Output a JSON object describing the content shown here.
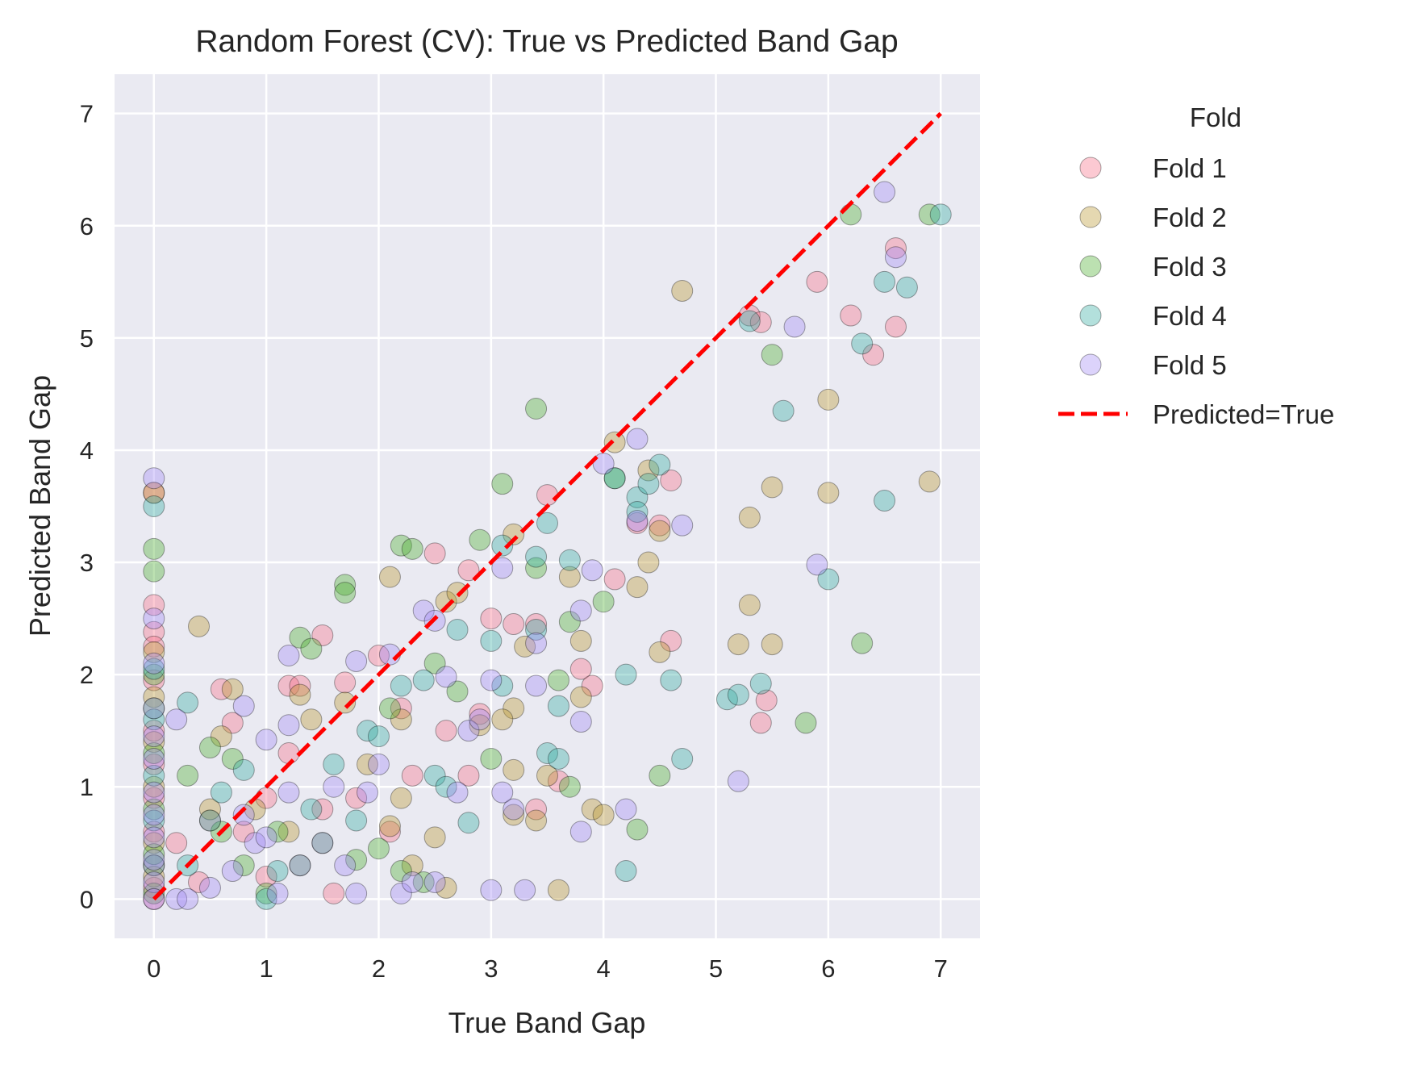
{
  "chart_data": {
    "type": "scatter",
    "title": "Random Forest (CV): True vs Predicted Band Gap",
    "xlabel": "True Band Gap",
    "ylabel": "Predicted Band Gap",
    "xlim": [
      -0.35,
      7.35
    ],
    "ylim": [
      -0.35,
      7.35
    ],
    "xticks": [
      "0",
      "1",
      "2",
      "3",
      "4",
      "5",
      "6",
      "7"
    ],
    "yticks": [
      "0",
      "1",
      "2",
      "3",
      "4",
      "5",
      "6",
      "7"
    ],
    "grid": true,
    "legend": {
      "title": "Fold",
      "placement": "outside-right",
      "entries": [
        "Fold 1",
        "Fold 2",
        "Fold 3",
        "Fold 4",
        "Fold 5",
        "Predicted=True"
      ]
    },
    "colors": {
      "Fold 1": "#f77189",
      "Fold 2": "#bb9832",
      "Fold 3": "#50b131",
      "Fold 4": "#36ada4",
      "Fold 5": "#a48cf4",
      "reference": "#ff0000",
      "background": "#eaeaf2"
    },
    "reference_line": {
      "name": "Predicted=True",
      "x": [
        0,
        7
      ],
      "y": [
        0,
        7
      ],
      "style": "dashed"
    },
    "series": [
      {
        "name": "Fold 1",
        "points": [
          [
            0,
            3.62
          ],
          [
            0,
            2.62
          ],
          [
            0,
            2.38
          ],
          [
            0,
            2.25
          ],
          [
            0,
            1.95
          ],
          [
            0,
            1.5
          ],
          [
            0,
            1.2
          ],
          [
            0,
            0.9
          ],
          [
            0,
            0.6
          ],
          [
            0,
            0.3
          ],
          [
            0,
            0.1
          ],
          [
            0,
            0
          ],
          [
            0.6,
            1.87
          ],
          [
            0.7,
            1.57
          ],
          [
            1.2,
            1.9
          ],
          [
            1.3,
            1.9
          ],
          [
            1.5,
            2.35
          ],
          [
            1.7,
            1.93
          ],
          [
            2,
            2.17
          ],
          [
            2.2,
            1.7
          ],
          [
            2.5,
            3.08
          ],
          [
            2.8,
            2.93
          ],
          [
            2.9,
            1.65
          ],
          [
            3,
            2.5
          ],
          [
            3.5,
            3.6
          ],
          [
            3.8,
            2.05
          ],
          [
            4.1,
            2.85
          ],
          [
            4.3,
            3.35
          ],
          [
            4.5,
            3.33
          ],
          [
            4.6,
            3.73
          ],
          [
            4.6,
            2.3
          ],
          [
            5.4,
            1.57
          ],
          [
            5.45,
            1.77
          ],
          [
            5.9,
            5.5
          ],
          [
            6.2,
            5.2
          ],
          [
            6.4,
            4.85
          ],
          [
            6.6,
            5.8
          ],
          [
            6.6,
            5.1
          ],
          [
            5.3,
            5.2
          ],
          [
            5.4,
            5.14
          ],
          [
            0.2,
            0.5
          ],
          [
            0.5,
            0.7
          ],
          [
            0.8,
            0.6
          ],
          [
            1,
            0.9
          ],
          [
            1.2,
            1.3
          ],
          [
            1.6,
            0.05
          ],
          [
            1.8,
            0.9
          ],
          [
            2.1,
            0.6
          ],
          [
            2.3,
            1.1
          ],
          [
            2.6,
            1.5
          ],
          [
            3.2,
            2.45
          ],
          [
            3.4,
            2.45
          ],
          [
            3.6,
            1.05
          ],
          [
            3.4,
            0.8
          ],
          [
            3.9,
            1.9
          ],
          [
            2.8,
            1.1
          ],
          [
            1.5,
            0.8
          ],
          [
            1,
            0.2
          ],
          [
            0.4,
            0.15
          ]
        ]
      },
      {
        "name": "Fold 2",
        "points": [
          [
            0,
            3.62
          ],
          [
            0,
            2.2
          ],
          [
            0,
            1.8
          ],
          [
            0,
            1.4
          ],
          [
            0,
            1.0
          ],
          [
            0,
            0.5
          ],
          [
            0,
            0.2
          ],
          [
            0.4,
            2.43
          ],
          [
            0.6,
            1.45
          ],
          [
            0.7,
            1.87
          ],
          [
            1.3,
            1.82
          ],
          [
            1.4,
            1.6
          ],
          [
            1.7,
            1.75
          ],
          [
            2.1,
            2.87
          ],
          [
            2.2,
            1.6
          ],
          [
            2.6,
            2.65
          ],
          [
            2.7,
            2.73
          ],
          [
            2.9,
            1.55
          ],
          [
            3.2,
            3.25
          ],
          [
            3.2,
            1.7
          ],
          [
            3.3,
            2.25
          ],
          [
            3.7,
            2.87
          ],
          [
            3.8,
            2.3
          ],
          [
            3.8,
            1.8
          ],
          [
            3.9,
            0.8
          ],
          [
            4,
            0.75
          ],
          [
            4.1,
            4.07
          ],
          [
            4.3,
            2.78
          ],
          [
            4.4,
            3
          ],
          [
            4.4,
            3.82
          ],
          [
            4.5,
            3.28
          ],
          [
            4.5,
            2.2
          ],
          [
            4.7,
            5.42
          ],
          [
            5.2,
            2.27
          ],
          [
            5.3,
            3.4
          ],
          [
            5.3,
            2.62
          ],
          [
            5.5,
            3.67
          ],
          [
            5.5,
            2.27
          ],
          [
            6,
            3.62
          ],
          [
            6,
            4.45
          ],
          [
            6.9,
            3.72
          ],
          [
            3.6,
            0.08
          ],
          [
            3.4,
            0.7
          ],
          [
            3.2,
            0.75
          ],
          [
            2.6,
            0.1
          ],
          [
            2.2,
            0.9
          ],
          [
            2.5,
            0.55
          ],
          [
            2.1,
            0.65
          ],
          [
            2.3,
            0.3
          ],
          [
            1.2,
            0.6
          ],
          [
            0.9,
            0.8
          ],
          [
            0.5,
            0.8
          ],
          [
            1.9,
            1.2
          ],
          [
            3.1,
            1.6
          ],
          [
            3.2,
            1.15
          ],
          [
            3.5,
            1.1
          ]
        ]
      },
      {
        "name": "Fold 3",
        "points": [
          [
            0,
            3.12
          ],
          [
            0,
            2.92
          ],
          [
            0,
            2.0
          ],
          [
            0,
            1.7
          ],
          [
            0,
            1.3
          ],
          [
            0,
            0.8
          ],
          [
            0,
            0.4
          ],
          [
            0,
            0.05
          ],
          [
            0.5,
            1.35
          ],
          [
            0.7,
            1.25
          ],
          [
            1.3,
            2.33
          ],
          [
            1.4,
            2.23
          ],
          [
            1.7,
            2.8
          ],
          [
            1.7,
            2.73
          ],
          [
            2.2,
            3.15
          ],
          [
            2.3,
            3.12
          ],
          [
            2.5,
            2.1
          ],
          [
            2.7,
            1.85
          ],
          [
            2.9,
            3.2
          ],
          [
            3.1,
            3.7
          ],
          [
            3.4,
            4.37
          ],
          [
            3.4,
            2.95
          ],
          [
            3.6,
            1.95
          ],
          [
            3.7,
            2.47
          ],
          [
            3.7,
            1.0
          ],
          [
            4,
            2.65
          ],
          [
            4.1,
            3.75
          ],
          [
            4.3,
            0.62
          ],
          [
            4.5,
            1.1
          ],
          [
            5.5,
            4.85
          ],
          [
            5.8,
            1.57
          ],
          [
            6.2,
            6.1
          ],
          [
            6.3,
            2.28
          ],
          [
            6.9,
            6.1
          ],
          [
            1.3,
            0.3
          ],
          [
            0.8,
            0.3
          ],
          [
            1.5,
            0.5
          ],
          [
            2,
            0.45
          ],
          [
            2.2,
            0.25
          ],
          [
            1.8,
            0.35
          ],
          [
            1,
            0.05
          ],
          [
            0.3,
            1.1
          ],
          [
            0.6,
            0.6
          ],
          [
            1.1,
            0.6
          ],
          [
            2.4,
            0.15
          ],
          [
            2.1,
            1.7
          ],
          [
            3,
            1.25
          ]
        ]
      },
      {
        "name": "Fold 4",
        "points": [
          [
            0,
            3.5
          ],
          [
            0,
            2.05
          ],
          [
            0,
            1.6
          ],
          [
            0,
            1.1
          ],
          [
            0,
            0.7
          ],
          [
            0,
            0.3
          ],
          [
            0.3,
            1.75
          ],
          [
            0.6,
            0.95
          ],
          [
            0.8,
            1.15
          ],
          [
            1.1,
            0.25
          ],
          [
            1.9,
            1.5
          ],
          [
            2.2,
            1.9
          ],
          [
            2.4,
            1.95
          ],
          [
            2.7,
            2.4
          ],
          [
            3,
            2.3
          ],
          [
            3.1,
            3.15
          ],
          [
            3.4,
            3.05
          ],
          [
            3.5,
            3.35
          ],
          [
            3.5,
            1.3
          ],
          [
            3.6,
            1.25
          ],
          [
            3.7,
            3.02
          ],
          [
            3.6,
            1.72
          ],
          [
            4.1,
            3.75
          ],
          [
            4.2,
            2.0
          ],
          [
            4.2,
            0.25
          ],
          [
            4.3,
            3.58
          ],
          [
            4.3,
            3.45
          ],
          [
            4.4,
            3.7
          ],
          [
            4.5,
            3.87
          ],
          [
            4.6,
            1.95
          ],
          [
            4.7,
            1.25
          ],
          [
            5.1,
            1.78
          ],
          [
            5.2,
            1.82
          ],
          [
            5.3,
            5.15
          ],
          [
            5.4,
            1.92
          ],
          [
            5.6,
            4.35
          ],
          [
            6,
            2.85
          ],
          [
            6.3,
            4.95
          ],
          [
            6.5,
            5.5
          ],
          [
            6.5,
            3.55
          ],
          [
            6.7,
            5.45
          ],
          [
            7,
            6.1
          ],
          [
            2.8,
            0.68
          ],
          [
            2.5,
            1.1
          ],
          [
            1.4,
            0.8
          ],
          [
            1,
            0.0
          ],
          [
            0.3,
            0.3
          ],
          [
            2,
            1.45
          ],
          [
            1.6,
            1.2
          ],
          [
            2.6,
            1.0
          ],
          [
            3.1,
            1.9
          ],
          [
            3.4,
            2.4
          ],
          [
            0.5,
            0.7
          ],
          [
            1.8,
            0.7
          ]
        ]
      },
      {
        "name": "Fold 5",
        "points": [
          [
            0,
            3.75
          ],
          [
            0,
            2.5
          ],
          [
            0,
            2.1
          ],
          [
            0,
            1.7
          ],
          [
            0,
            1.45
          ],
          [
            0,
            1.25
          ],
          [
            0,
            0.95
          ],
          [
            0,
            0.75
          ],
          [
            0,
            0.55
          ],
          [
            0,
            0.35
          ],
          [
            0,
            0.15
          ],
          [
            0,
            0
          ],
          [
            0.2,
            1.6
          ],
          [
            0.8,
            1.72
          ],
          [
            1,
            1.42
          ],
          [
            1.2,
            1.55
          ],
          [
            1.2,
            2.17
          ],
          [
            1.8,
            2.12
          ],
          [
            2.1,
            2.18
          ],
          [
            2.4,
            2.57
          ],
          [
            2.5,
            2.48
          ],
          [
            2.6,
            1.98
          ],
          [
            2.8,
            1.5
          ],
          [
            3,
            1.95
          ],
          [
            3.1,
            2.95
          ],
          [
            3.2,
            0.8
          ],
          [
            3.3,
            0.08
          ],
          [
            3,
            0.08
          ],
          [
            3.4,
            2.28
          ],
          [
            3.4,
            1.9
          ],
          [
            3.8,
            2.57
          ],
          [
            3.8,
            1.58
          ],
          [
            3.8,
            0.6
          ],
          [
            3.9,
            2.93
          ],
          [
            4,
            3.88
          ],
          [
            4.2,
            0.8
          ],
          [
            4.3,
            4.1
          ],
          [
            4.3,
            3.37
          ],
          [
            4.7,
            3.33
          ],
          [
            5.2,
            1.05
          ],
          [
            5.7,
            5.1
          ],
          [
            5.9,
            2.98
          ],
          [
            6.5,
            6.3
          ],
          [
            6.6,
            5.72
          ],
          [
            0.2,
            0.0
          ],
          [
            0.3,
            0.0
          ],
          [
            0.5,
            0.1
          ],
          [
            0.7,
            0.25
          ],
          [
            0.9,
            0.5
          ],
          [
            1.1,
            0.05
          ],
          [
            1.3,
            0.3
          ],
          [
            1.5,
            0.5
          ],
          [
            1.7,
            0.3
          ],
          [
            1.8,
            0.05
          ],
          [
            1.9,
            0.95
          ],
          [
            2,
            1.2
          ],
          [
            2.2,
            0.05
          ],
          [
            2.3,
            0.15
          ],
          [
            2.5,
            0.15
          ],
          [
            2.7,
            0.95
          ],
          [
            1.6,
            1.0
          ],
          [
            1.2,
            0.95
          ],
          [
            0.8,
            0.75
          ],
          [
            1,
            0.55
          ],
          [
            2.9,
            1.6
          ],
          [
            3.1,
            0.95
          ]
        ]
      }
    ]
  }
}
